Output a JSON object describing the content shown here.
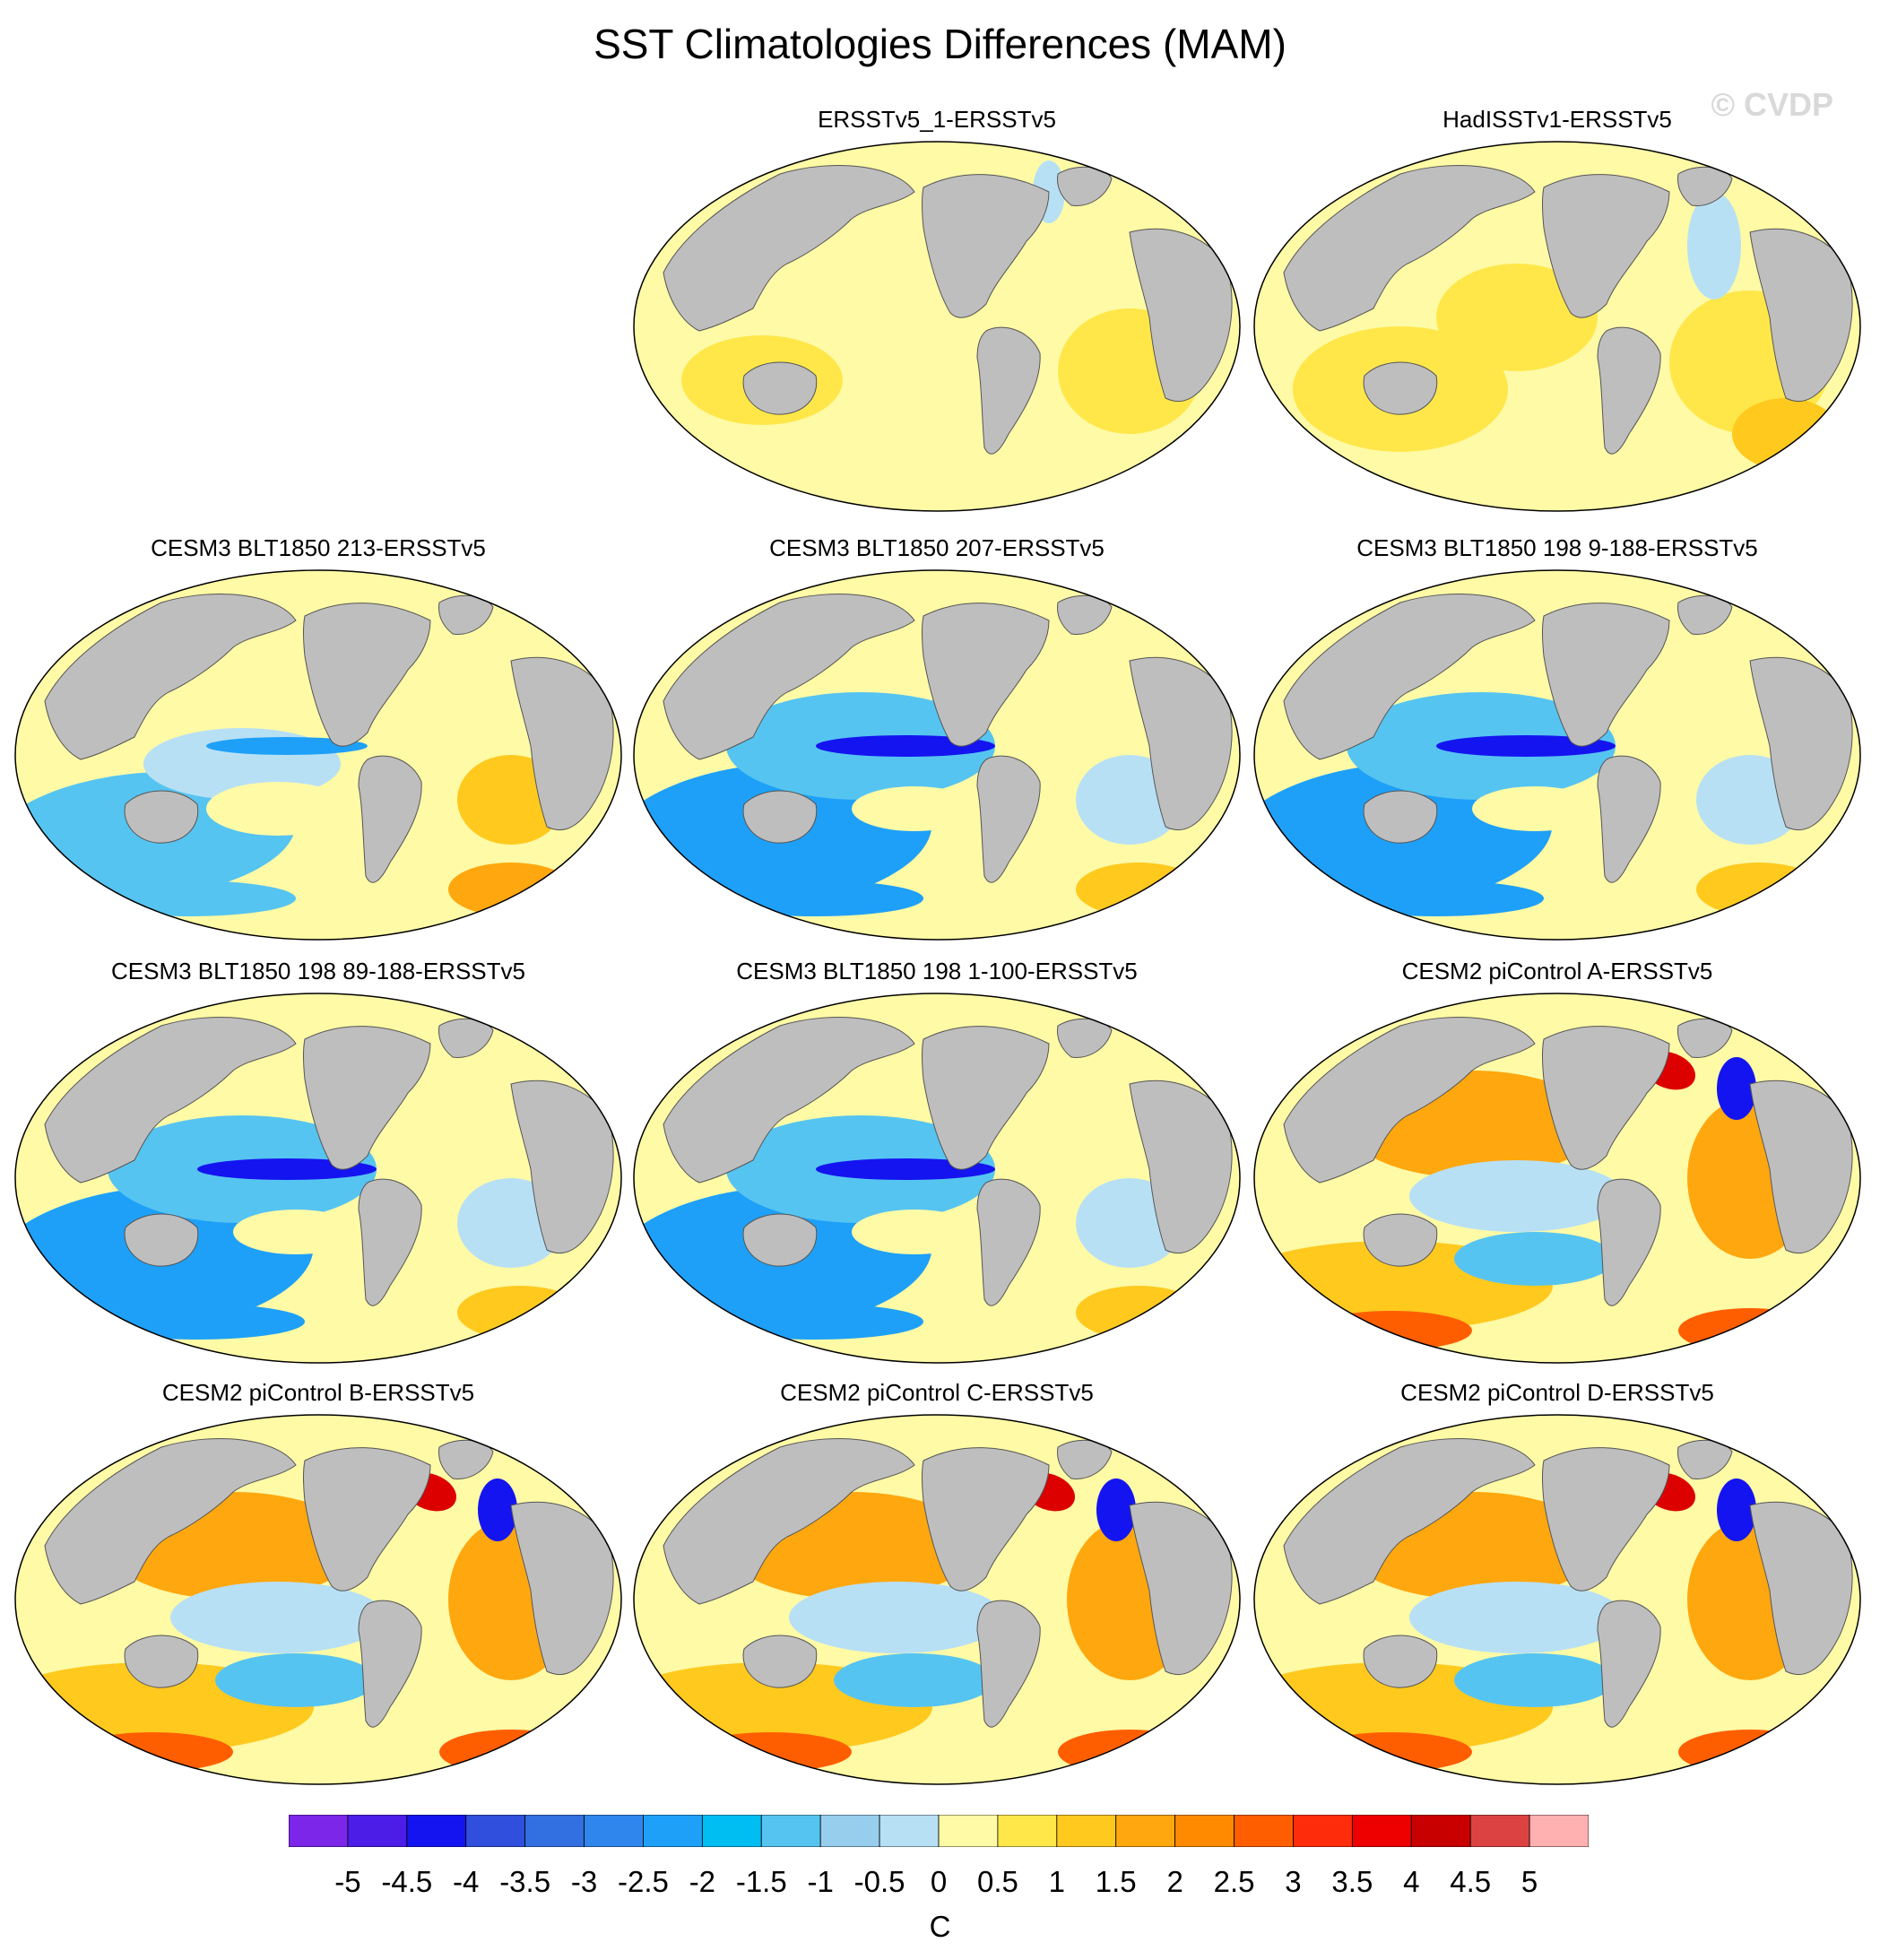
{
  "title": "SST Climatologies Differences (MAM)",
  "watermark": "© CVDP",
  "panels": [
    {
      "title": "ERSSTv5_1-ERSSTv5",
      "pattern": "near-zero"
    },
    {
      "title": "HadISSTv1-ERSSTv5",
      "pattern": "warm-small"
    },
    {
      "title": "CESM3 BLT1850 213-ERSSTv5",
      "pattern": "cesm3-mixed"
    },
    {
      "title": "CESM3 BLT1850 207-ERSSTv5",
      "pattern": "cesm3-cold"
    },
    {
      "title": "CESM3 BLT1850 198 9-188-ERSSTv5",
      "pattern": "cesm3-cold"
    },
    {
      "title": "CESM3 BLT1850 198 89-188-ERSSTv5",
      "pattern": "cesm3-cold"
    },
    {
      "title": "CESM3 BLT1850 198 1-100-ERSSTv5",
      "pattern": "cesm3-cold"
    },
    {
      "title": "CESM2 piControl A-ERSSTv5",
      "pattern": "cesm2-warm"
    },
    {
      "title": "CESM2 piControl B-ERSSTv5",
      "pattern": "cesm2-warm"
    },
    {
      "title": "CESM2 piControl C-ERSSTv5",
      "pattern": "cesm2-warm"
    },
    {
      "title": "CESM2 piControl D-ERSSTv5",
      "pattern": "cesm2-warm"
    }
  ],
  "colorbar": {
    "units": "C",
    "labels": [
      "-5",
      "-4.5",
      "-4",
      "-3.5",
      "-3",
      "-2.5",
      "-2",
      "-1.5",
      "-1",
      "-0.5",
      "0",
      "0.5",
      "1",
      "1.5",
      "2",
      "2.5",
      "3",
      "3.5",
      "4",
      "4.5",
      "5"
    ],
    "colors": [
      "#7b26e8",
      "#4b1de6",
      "#1414f0",
      "#2f4fdc",
      "#326fe0",
      "#2f86ec",
      "#1ea0f8",
      "#00bdf2",
      "#56c4f1",
      "#97ceee",
      "#b8e0f5",
      "#fffaa6",
      "#ffe74a",
      "#ffc91e",
      "#ffa70f",
      "#ff8a00",
      "#ff5e00",
      "#ff2c0c",
      "#ee0000",
      "#c80000",
      "#dd4242",
      "#ffb0b0"
    ]
  },
  "map_colors": {
    "land": "#bebebe",
    "near_zero": "#fffaa6",
    "warm_small": "#ffe74a",
    "cool_small": "#b8e0f5",
    "cool_mid": "#56c4f1",
    "cool_strong": "#1ea0f8",
    "cool_deep": "#1414f0",
    "warm_mid": "#ffc91e",
    "warm_strong": "#ffa70f",
    "warm_hot": "#ff5e00",
    "warm_max": "#dd0000"
  }
}
